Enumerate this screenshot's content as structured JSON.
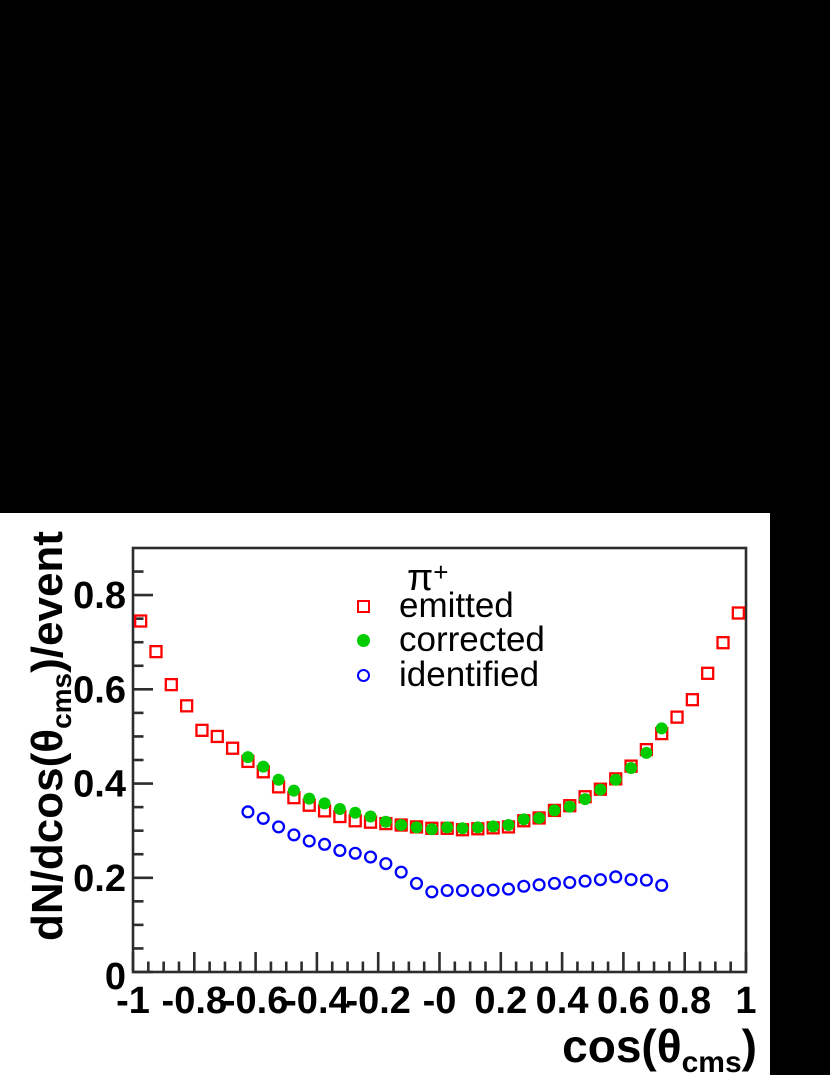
{
  "panel": {
    "background": "#ffffff",
    "backdrop": "#000000",
    "frame_color": "#2d2d2d"
  },
  "chart_data": {
    "type": "scatter",
    "title": "π+",
    "xlabel": "cos(θ_cms)",
    "ylabel": "dN/dcos(θ_cms)/event",
    "xlim": [
      -1,
      1
    ],
    "ylim": [
      0,
      0.9
    ],
    "grid": false,
    "minor_tick_step": 0.05,
    "x_ticks": {
      "values": [
        -1,
        -0.8,
        -0.6,
        -0.4,
        -0.2,
        0,
        0.2,
        0.4,
        0.6,
        0.8,
        1
      ],
      "labels": [
        "-1",
        "-0.8",
        "-0.6",
        "-0.4",
        "-0.2",
        "-0",
        "0.2",
        "0.4",
        "0.6",
        "0.8",
        "1"
      ]
    },
    "y_ticks": {
      "values": [
        0,
        0.2,
        0.4,
        0.6,
        0.8
      ],
      "labels": [
        "0",
        "0.2",
        "0.4",
        "0.6",
        "0.8"
      ]
    },
    "legend": {
      "position": "top-center",
      "title": "π",
      "title_superscript": "+",
      "items": [
        {
          "label": "emitted",
          "marker": "open-square",
          "color": "#ff0000"
        },
        {
          "label": "corrected",
          "marker": "filled-circle",
          "color": "#00cc00"
        },
        {
          "label": "identified",
          "marker": "open-circle",
          "color": "#0000ff"
        }
      ]
    },
    "series": [
      {
        "name": "emitted",
        "marker": "open-square",
        "color": "#ff0000",
        "x": [
          -0.975,
          -0.925,
          -0.875,
          -0.825,
          -0.775,
          -0.725,
          -0.675,
          -0.625,
          -0.575,
          -0.525,
          -0.475,
          -0.425,
          -0.375,
          -0.325,
          -0.275,
          -0.225,
          -0.175,
          -0.125,
          -0.075,
          -0.025,
          0.025,
          0.075,
          0.125,
          0.175,
          0.225,
          0.275,
          0.325,
          0.375,
          0.425,
          0.475,
          0.525,
          0.575,
          0.625,
          0.675,
          0.725,
          0.775,
          0.825,
          0.875,
          0.925,
          0.975
        ],
        "y": [
          0.745,
          0.68,
          0.61,
          0.565,
          0.513,
          0.5,
          0.475,
          0.447,
          0.425,
          0.393,
          0.37,
          0.354,
          0.342,
          0.33,
          0.321,
          0.318,
          0.315,
          0.312,
          0.308,
          0.305,
          0.305,
          0.302,
          0.304,
          0.306,
          0.308,
          0.321,
          0.327,
          0.343,
          0.353,
          0.372,
          0.388,
          0.41,
          0.437,
          0.472,
          0.506,
          0.541,
          0.578,
          0.634,
          0.699,
          0.762
        ]
      },
      {
        "name": "corrected",
        "marker": "filled-circle",
        "color": "#00cc00",
        "x": [
          -0.625,
          -0.575,
          -0.525,
          -0.475,
          -0.425,
          -0.375,
          -0.325,
          -0.275,
          -0.225,
          -0.175,
          -0.125,
          -0.075,
          -0.025,
          0.025,
          0.075,
          0.125,
          0.175,
          0.225,
          0.275,
          0.325,
          0.375,
          0.425,
          0.475,
          0.525,
          0.575,
          0.625,
          0.675,
          0.725
        ],
        "y": [
          0.456,
          0.436,
          0.408,
          0.385,
          0.368,
          0.358,
          0.346,
          0.338,
          0.33,
          0.319,
          0.312,
          0.307,
          0.303,
          0.307,
          0.305,
          0.307,
          0.309,
          0.312,
          0.324,
          0.327,
          0.343,
          0.351,
          0.367,
          0.387,
          0.408,
          0.433,
          0.465,
          0.517
        ]
      },
      {
        "name": "identified",
        "marker": "open-circle",
        "color": "#0000ff",
        "x": [
          -0.625,
          -0.575,
          -0.525,
          -0.475,
          -0.425,
          -0.375,
          -0.325,
          -0.275,
          -0.225,
          -0.175,
          -0.125,
          -0.075,
          -0.025,
          0.025,
          0.075,
          0.125,
          0.175,
          0.225,
          0.275,
          0.325,
          0.375,
          0.425,
          0.475,
          0.525,
          0.575,
          0.625,
          0.675,
          0.725
        ],
        "y": [
          0.34,
          0.326,
          0.308,
          0.291,
          0.278,
          0.271,
          0.258,
          0.252,
          0.244,
          0.23,
          0.212,
          0.188,
          0.17,
          0.173,
          0.173,
          0.173,
          0.174,
          0.176,
          0.182,
          0.185,
          0.188,
          0.19,
          0.193,
          0.196,
          0.202,
          0.196,
          0.195,
          0.184
        ]
      }
    ]
  },
  "axis_titles": {
    "y_prefix": "dN/dcos(",
    "theta": "θ",
    "subscript": "cms",
    "y_suffix": ")/event",
    "x_prefix": "cos(",
    "x_suffix": ")"
  }
}
